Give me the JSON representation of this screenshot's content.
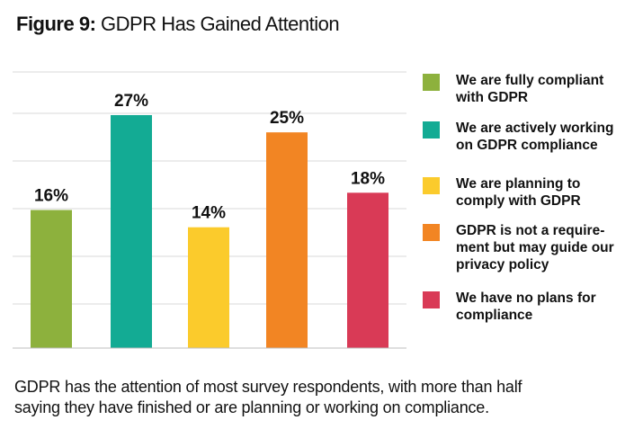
{
  "figure": {
    "label": "Figure 9:",
    "title": "GDPR Has Gained Attention"
  },
  "chart_data": {
    "type": "bar",
    "categories": [
      "We are fully compliant with GDPR",
      "We are actively working on GDPR compliance",
      "We are planning to comply with GDPR",
      "GDPR is not a requirement but may guide our privacy policy",
      "We have no plans for compliance"
    ],
    "values": [
      16,
      27,
      14,
      25,
      18
    ],
    "value_labels": [
      "16%",
      "27%",
      "14%",
      "25%",
      "18%"
    ],
    "colors": [
      "#8db13d",
      "#13ab94",
      "#fbcb2c",
      "#f28523",
      "#d93a56"
    ],
    "ylim": [
      0,
      32
    ],
    "grid": true,
    "legend_position": "right",
    "xlabel": "",
    "ylabel": ""
  },
  "legend": {
    "items": [
      {
        "label": "We are fully compliant\nwith GDPR",
        "color": "#8db13d"
      },
      {
        "label": "We are actively working\non GDPR compliance",
        "color": "#13ab94"
      },
      {
        "label": "We are planning to\ncomply with GDPR",
        "color": "#fbcb2c"
      },
      {
        "label": "GDPR is not a require-\nment but may guide our\nprivacy policy",
        "color": "#f28523"
      },
      {
        "label": "We have no plans for\ncompliance",
        "color": "#d93a56"
      }
    ]
  },
  "caption": {
    "line1": "GDPR has the attention of most survey respondents, with more than half",
    "line2": "saying they have finished or are planning or working on compliance."
  }
}
